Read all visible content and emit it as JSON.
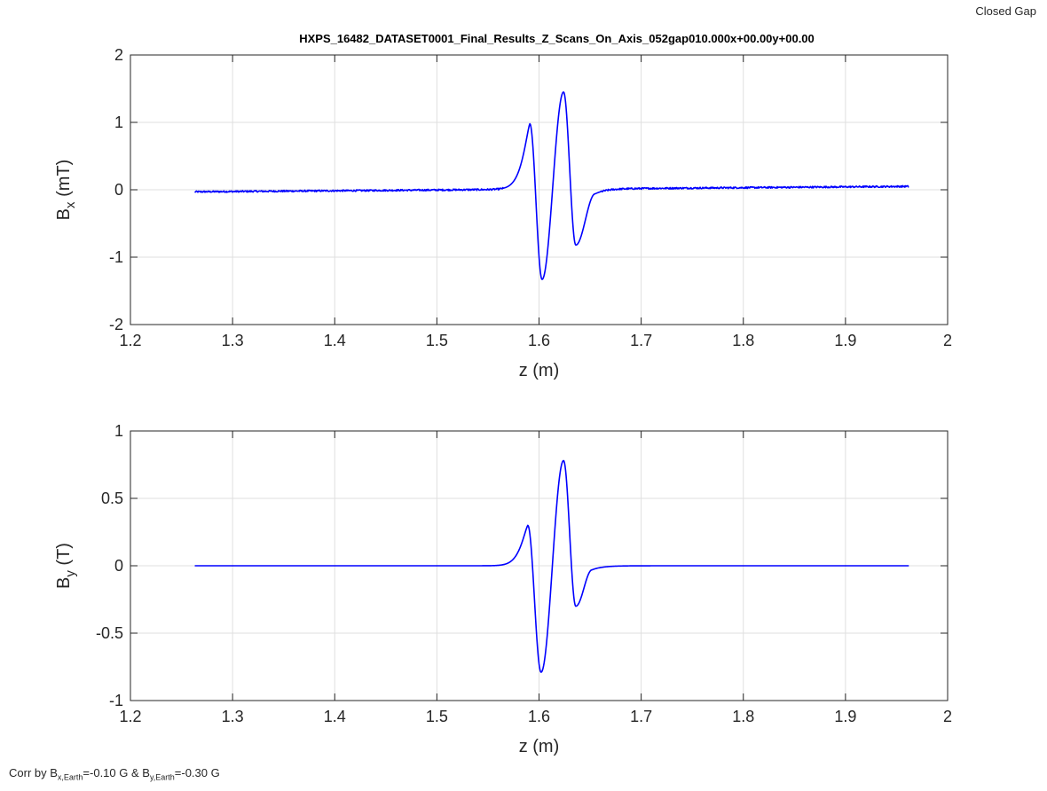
{
  "figure": {
    "corner_label": "Closed Gap",
    "footnote": {
      "prefix": "Corr by B",
      "bx_sub": "x,Earth",
      "bx_value": "=-0.10 G & B",
      "by_sub": "y,Earth",
      "by_value": "=-0.30 G"
    }
  },
  "chart_data": [
    {
      "type": "line",
      "title": "HXPS_16482_DATASET0001_Final_Results_Z_Scans_On_Axis_052gap010.000x+00.00y+00.00",
      "xlabel": "z (m)",
      "ylabel_main": "B",
      "ylabel_sub": "x",
      "ylabel_unit": "(mT)",
      "xlim": [
        1.2,
        2.0
      ],
      "ylim": [
        -2,
        2
      ],
      "xticks": [
        "1.2",
        "1.3",
        "1.4",
        "1.5",
        "1.6",
        "1.7",
        "1.8",
        "1.9",
        "2"
      ],
      "yticks": [
        "-2",
        "-1",
        "0",
        "1",
        "2"
      ],
      "grid": true,
      "line_color": "#0000ff",
      "x_range": [
        1.263,
        1.962
      ],
      "baseline": {
        "start": -0.03,
        "end": 0.05
      },
      "noise_amplitude": 0.012,
      "features": [
        {
          "z": 1.591,
          "peak": 0.98
        },
        {
          "z": 1.603,
          "peak": -1.33
        },
        {
          "z": 1.624,
          "peak": 1.45
        },
        {
          "z": 1.636,
          "peak": -0.82
        },
        {
          "z": 1.655,
          "peak": -0.06
        }
      ],
      "x": [
        1.263,
        1.4,
        1.5,
        1.56,
        1.575,
        1.583,
        1.591,
        1.597,
        1.603,
        1.609,
        1.616,
        1.624,
        1.63,
        1.636,
        1.642,
        1.652,
        1.665,
        1.7,
        1.8,
        1.962
      ],
      "y": [
        -0.03,
        -0.01,
        0.01,
        0.04,
        0.15,
        0.5,
        0.98,
        0.2,
        -1.33,
        -0.6,
        0.6,
        1.45,
        0.6,
        -0.82,
        -0.3,
        -0.1,
        -0.02,
        0.01,
        0.02,
        0.05
      ]
    },
    {
      "type": "line",
      "title": "",
      "xlabel": "z (m)",
      "ylabel_main": "B",
      "ylabel_sub": "y",
      "ylabel_unit": "(T)",
      "xlim": [
        1.2,
        2.0
      ],
      "ylim": [
        -1,
        1
      ],
      "xticks": [
        "1.2",
        "1.3",
        "1.4",
        "1.5",
        "1.6",
        "1.7",
        "1.8",
        "1.9",
        "2"
      ],
      "yticks": [
        "-1",
        "-0.5",
        "0",
        "0.5",
        "1"
      ],
      "grid": true,
      "line_color": "#0000ff",
      "x_range": [
        1.263,
        1.962
      ],
      "baseline": {
        "start": 0,
        "end": 0
      },
      "noise_amplitude": 0,
      "features": [
        {
          "z": 1.589,
          "peak": 0.3
        },
        {
          "z": 1.602,
          "peak": -0.79
        },
        {
          "z": 1.624,
          "peak": 0.78
        },
        {
          "z": 1.636,
          "peak": -0.3
        },
        {
          "z": 1.652,
          "peak": -0.03
        }
      ],
      "x": [
        1.263,
        1.5,
        1.56,
        1.575,
        1.583,
        1.589,
        1.595,
        1.602,
        1.609,
        1.616,
        1.624,
        1.63,
        1.636,
        1.642,
        1.652,
        1.665,
        1.7,
        1.962
      ],
      "y": [
        0,
        0,
        0.01,
        0.05,
        0.15,
        0.3,
        0.0,
        -0.79,
        -0.4,
        0.3,
        0.78,
        0.3,
        -0.3,
        -0.12,
        -0.03,
        -0.01,
        0,
        0
      ]
    }
  ]
}
